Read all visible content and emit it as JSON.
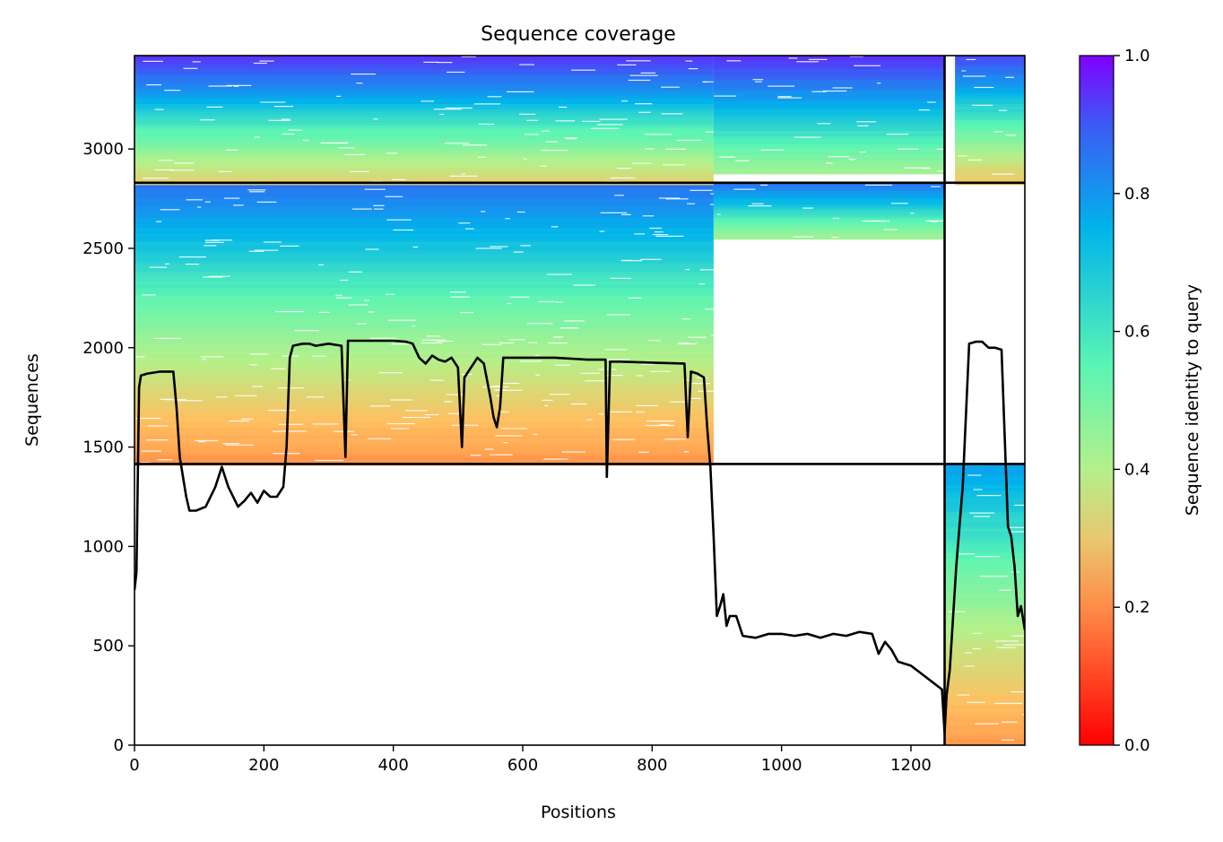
{
  "chart_data": {
    "type": "heatmap",
    "title": "Sequence coverage",
    "xlabel": "Positions",
    "ylabel": "Sequences",
    "xlim": [
      0,
      1376
    ],
    "ylim": [
      0,
      3470
    ],
    "xticks": [
      0,
      200,
      400,
      600,
      800,
      1000,
      1200
    ],
    "yticks": [
      0,
      500,
      1000,
      1500,
      2000,
      2500,
      3000
    ],
    "colorbar": {
      "label": "Sequence identity to query",
      "range": [
        0,
        1
      ],
      "ticks": [
        0.0,
        0.2,
        0.4,
        0.6,
        0.8,
        1.0
      ],
      "tick_labels": [
        "0.0",
        "0.2",
        "0.4",
        "0.6",
        "0.8",
        "1.0"
      ],
      "colormap": "rainbow",
      "stops": [
        "#ff0000",
        "#ff7f40",
        "#ffbf60",
        "#b4f08a",
        "#5af5b4",
        "#00b4eb",
        "#3c5af5",
        "#8000ff"
      ]
    },
    "chain_boundary_x": 1252,
    "block_boundaries_y": [
      1415,
      2830
    ],
    "blocks": [
      {
        "x": [
          0,
          895
        ],
        "y": [
          1415,
          2830
        ],
        "identity_bottom": 0.19,
        "identity_top": 0.82
      },
      {
        "x": [
          895,
          1252
        ],
        "y": [
          2550,
          2830
        ],
        "identity_bottom": 0.45,
        "identity_top": 0.82
      },
      {
        "x": [
          0,
          895
        ],
        "y": [
          2830,
          3470
        ],
        "identity_bottom": 0.33,
        "identity_top": 0.92
      },
      {
        "x": [
          895,
          1252
        ],
        "y": [
          2880,
          3470
        ],
        "identity_bottom": 0.45,
        "identity_top": 0.92
      },
      {
        "x": [
          1268,
          1376
        ],
        "y": [
          2830,
          3470
        ],
        "identity_bottom": 0.3,
        "identity_top": 0.88
      },
      {
        "x": [
          1252,
          1376
        ],
        "y": [
          0,
          1415
        ],
        "identity_bottom": 0.2,
        "identity_top": 0.75
      }
    ],
    "coverage_line": {
      "x": [
        0,
        3,
        7,
        10,
        20,
        40,
        60,
        65,
        70,
        75,
        80,
        85,
        95,
        110,
        125,
        135,
        145,
        160,
        170,
        180,
        190,
        200,
        210,
        220,
        230,
        235,
        240,
        245,
        260,
        270,
        280,
        300,
        320,
        326,
        330,
        335,
        360,
        400,
        420,
        430,
        440,
        450,
        460,
        470,
        480,
        490,
        500,
        506,
        510,
        520,
        530,
        540,
        550,
        555,
        560,
        565,
        570,
        580,
        600,
        650,
        700,
        728,
        730,
        735,
        750,
        800,
        850,
        855,
        860,
        870,
        880,
        885,
        890,
        895,
        900,
        905,
        910,
        915,
        920,
        930,
        940,
        960,
        980,
        1000,
        1020,
        1040,
        1060,
        1080,
        1100,
        1120,
        1140,
        1150,
        1160,
        1170,
        1180,
        1200,
        1220,
        1240,
        1248,
        1252,
        1255,
        1260,
        1270,
        1280,
        1290,
        1300,
        1310,
        1320,
        1330,
        1340,
        1350,
        1355,
        1360,
        1365,
        1370,
        1376
      ],
      "y": [
        780,
        870,
        1800,
        1860,
        1870,
        1880,
        1880,
        1700,
        1450,
        1350,
        1250,
        1180,
        1180,
        1200,
        1300,
        1400,
        1300,
        1200,
        1230,
        1270,
        1220,
        1280,
        1250,
        1250,
        1300,
        1500,
        1950,
        2010,
        2020,
        2020,
        2010,
        2020,
        2010,
        1450,
        2035,
        2035,
        2035,
        2035,
        2030,
        2020,
        1950,
        1920,
        1960,
        1940,
        1930,
        1950,
        1900,
        1500,
        1850,
        1900,
        1950,
        1920,
        1750,
        1650,
        1600,
        1700,
        1950,
        1950,
        1950,
        1950,
        1940,
        1940,
        1350,
        1930,
        1930,
        1925,
        1920,
        1550,
        1880,
        1870,
        1850,
        1600,
        1400,
        1050,
        650,
        700,
        760,
        600,
        650,
        650,
        550,
        540,
        560,
        560,
        550,
        560,
        540,
        560,
        550,
        570,
        560,
        460,
        520,
        480,
        420,
        400,
        350,
        300,
        280,
        60,
        250,
        380,
        900,
        1300,
        2020,
        2030,
        2030,
        2000,
        2000,
        1990,
        1100,
        1050,
        900,
        650,
        700,
        580
      ]
    }
  }
}
